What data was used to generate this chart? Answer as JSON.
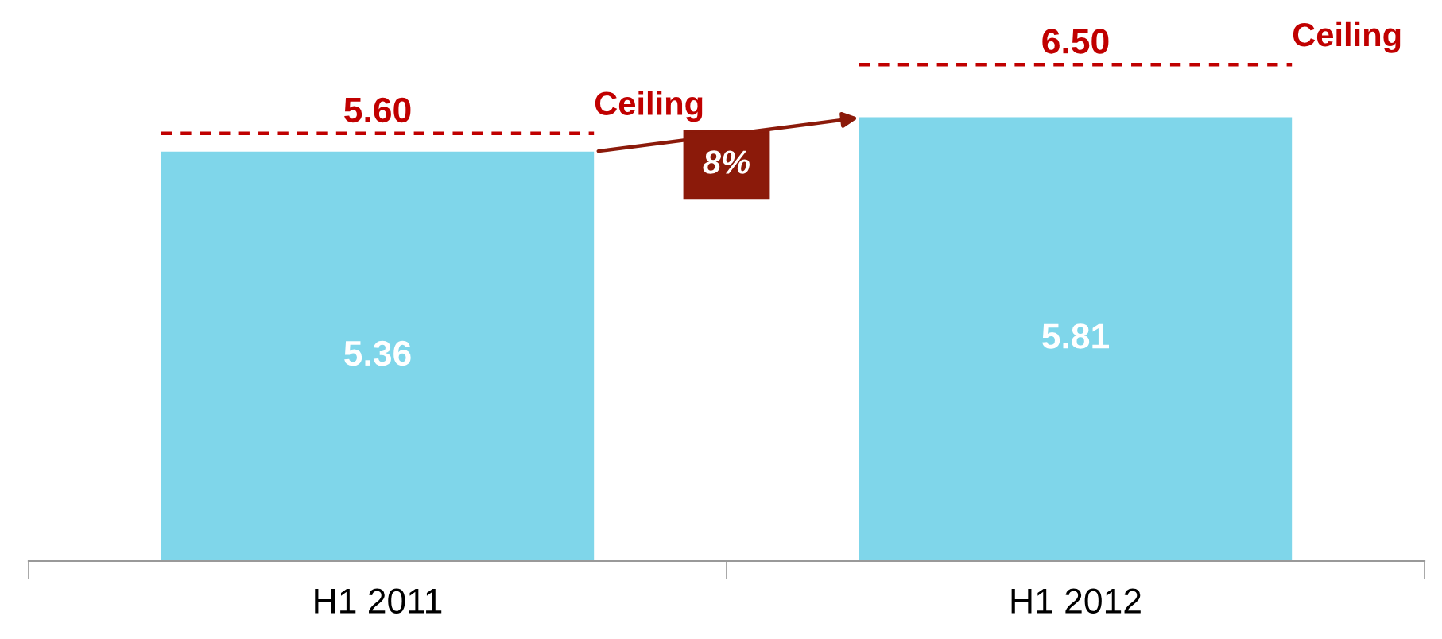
{
  "chart_data": {
    "type": "bar",
    "categories": [
      "H1 2011",
      "H1 2012"
    ],
    "values": [
      5.36,
      5.81
    ],
    "color": "#7fd6ea",
    "data_labels": true,
    "tick_labels": "x",
    "grid": false,
    "legend": false,
    "ref_lines": [
      {
        "axis": "y",
        "value": 5.6,
        "label": "5.60",
        "color": "#c00000",
        "line_style": "dashed"
      },
      {
        "axis": "y",
        "value": 6.5,
        "label": "6.50",
        "color": "#c00000",
        "line_style": "dashed"
      }
    ],
    "annotations": [
      "Ceiling",
      "Ceiling",
      "8%"
    ]
  }
}
